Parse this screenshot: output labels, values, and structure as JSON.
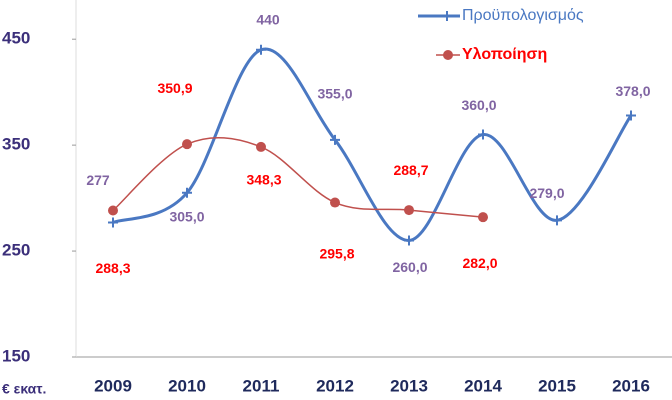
{
  "chart_data": {
    "type": "line",
    "y_axis_label": "€ εκατ.",
    "categories": [
      "2009",
      "2010",
      "2011",
      "2012",
      "2013",
      "2014",
      "2015",
      "2016"
    ],
    "series": [
      {
        "name": "Προϋπολογισμός",
        "color": "#4a78c2",
        "label_color": "#8064a2",
        "marker": "plus",
        "values": [
          277,
          305.0,
          440,
          355.0,
          260.0,
          360.0,
          279.0,
          378.0
        ],
        "value_labels": [
          "277",
          "305,0",
          "440",
          "355,0",
          "260,0",
          "360,0",
          "279,0",
          "378,0"
        ]
      },
      {
        "name": "Υλοποίηση",
        "color": "#c0504d",
        "label_color": "#ff0000",
        "marker": "circle",
        "values": [
          288.3,
          350.9,
          348.3,
          295.8,
          288.7,
          282.0,
          null,
          null
        ],
        "value_labels": [
          "288,3",
          "350,9",
          "348,3",
          "295,8",
          "288,7",
          "282,0",
          null,
          null
        ]
      }
    ],
    "ylim": [
      150,
      487
    ],
    "yticks": [
      150,
      250,
      350,
      450
    ],
    "grid": false,
    "legend": "top-right"
  }
}
